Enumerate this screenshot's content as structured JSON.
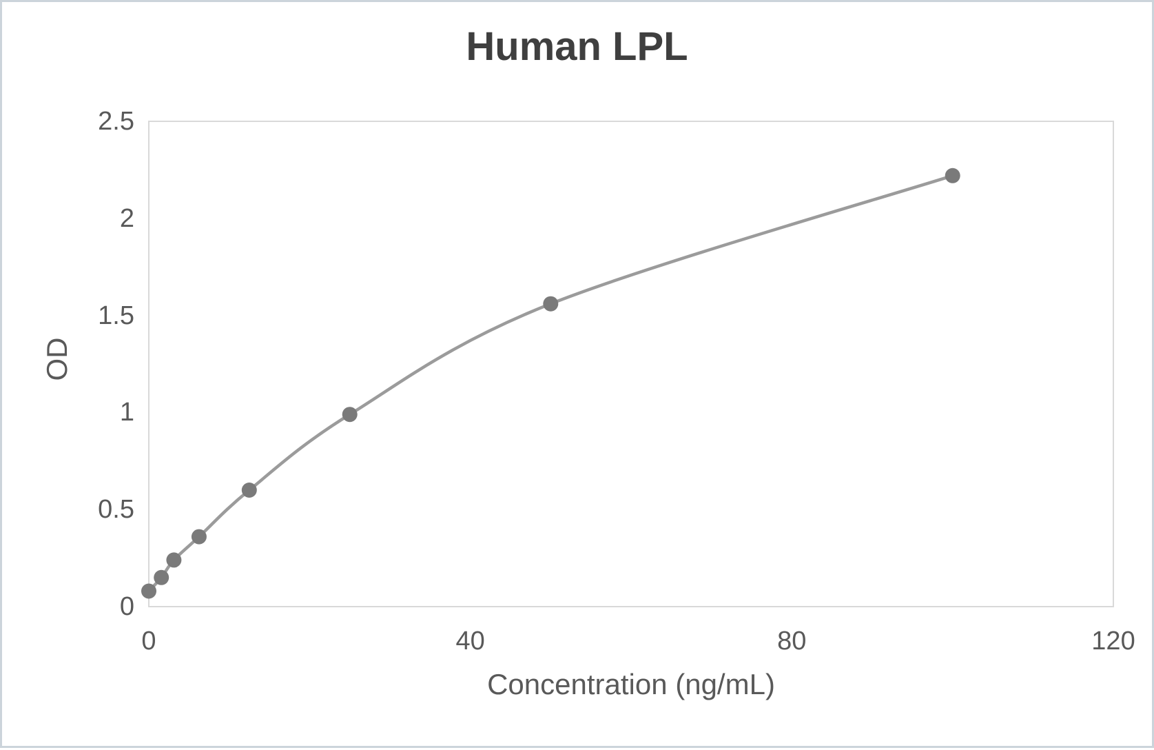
{
  "frame": {
    "background": "#ffffff",
    "border_color": "#ccd4db"
  },
  "chart_data": {
    "type": "line",
    "title": "Human LPL",
    "xlabel": "Concentration (ng/mL)",
    "ylabel": "OD",
    "x": [
      0,
      1.56,
      3.12,
      6.25,
      12.5,
      25,
      50,
      100
    ],
    "y": [
      0.08,
      0.15,
      0.24,
      0.36,
      0.6,
      0.99,
      1.56,
      2.22
    ],
    "xlim": [
      0,
      120
    ],
    "ylim": [
      0,
      2.5
    ],
    "xticks": [
      0,
      40,
      80,
      120
    ],
    "yticks": [
      0,
      0.5,
      1,
      1.5,
      2,
      2.5
    ],
    "grid": false,
    "legend": false,
    "smooth_line": true,
    "line_color": "#9b9b9b",
    "marker_color": "#7a7a7a",
    "axis_color": "#d9d9d9",
    "tick_text_color": "#595959",
    "title_color": "#3f3f3f"
  }
}
